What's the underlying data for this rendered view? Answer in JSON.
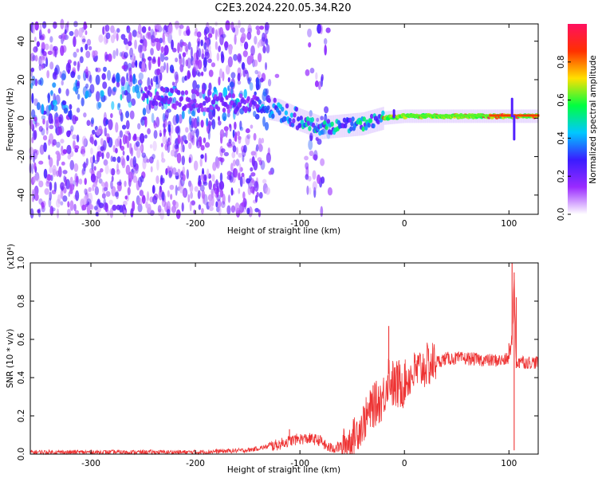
{
  "title": "C2E3.2024.220.05.34.R20",
  "chart_data": [
    {
      "type": "heatmap",
      "xlabel": "Height of straight line (km)",
      "ylabel": "Frequency (Hz)",
      "xlim": [
        -358,
        128
      ],
      "ylim": [
        -50,
        49
      ],
      "x_ticks": [
        -300,
        -200,
        -100,
        0,
        100
      ],
      "y_ticks": [
        -40,
        -20,
        0,
        20,
        40
      ],
      "colorbar": {
        "label": "Normalized spectral amplitude",
        "range": [
          0,
          1
        ],
        "ticks": [
          0.0,
          0.2,
          0.4,
          0.6,
          0.8
        ],
        "colors": [
          "#ffffff",
          "#9a2bff",
          "#3a1cff",
          "#00c8ff",
          "#00ff40",
          "#ffe000",
          "#ff3000",
          "#ff1060"
        ]
      },
      "ridge": [
        {
          "x": -240,
          "f": 11
        },
        {
          "x": -200,
          "f": 9
        },
        {
          "x": -160,
          "f": 8
        },
        {
          "x": -120,
          "f": 4
        },
        {
          "x": -100,
          "f": -1
        },
        {
          "x": -80,
          "f": -5
        },
        {
          "x": -60,
          "f": -4
        },
        {
          "x": -40,
          "f": -3
        },
        {
          "x": -20,
          "f": 0
        },
        {
          "x": 0,
          "f": 1
        },
        {
          "x": 50,
          "f": 1
        },
        {
          "x": 100,
          "f": 1
        },
        {
          "x": 128,
          "f": 1
        }
      ],
      "spikes": [
        {
          "x": -10,
          "f": 4
        },
        {
          "x": 103,
          "f": 10
        },
        {
          "x": 105,
          "f": -11
        }
      ]
    },
    {
      "type": "line",
      "xlabel": "Height of straight line (km)",
      "ylabel": "SNR (10 * v/v)",
      "y_multiplier": "(x10⁴)",
      "xlim": [
        -358,
        128
      ],
      "ylim": [
        0,
        1.0
      ],
      "x_ticks": [
        -300,
        -200,
        -100,
        0,
        100
      ],
      "y_ticks": [
        0.0,
        0.2,
        0.4,
        0.6,
        0.8,
        1.0
      ],
      "color": "#ee3333",
      "series": [
        {
          "x": [
            -358,
            -300,
            -250,
            -200,
            -150,
            -120,
            -110,
            -100,
            -90,
            -80,
            -75,
            -70,
            -60,
            -50,
            -40,
            -30,
            -20,
            -15,
            -10,
            0,
            10,
            20,
            30,
            40,
            60,
            80,
            95,
            100,
            103,
            105,
            107,
            110,
            115,
            128
          ],
          "y": [
            0.01,
            0.01,
            0.01,
            0.01,
            0.02,
            0.05,
            0.07,
            0.08,
            0.08,
            0.07,
            0.04,
            0.03,
            0.04,
            0.08,
            0.16,
            0.25,
            0.3,
            0.42,
            0.35,
            0.38,
            0.43,
            0.46,
            0.48,
            0.5,
            0.5,
            0.49,
            0.49,
            0.5,
            0.6,
            0.95,
            0.45,
            0.5,
            0.48,
            0.48
          ]
        }
      ],
      "spikes": [
        {
          "x": -15,
          "y": 0.67
        },
        {
          "x": -30,
          "y": 0.36
        },
        {
          "x": -110,
          "y": 0.13
        },
        {
          "x": 100,
          "y": 0.58
        },
        {
          "x": 103,
          "y": 1.0
        },
        {
          "x": 105,
          "y": 0.02
        },
        {
          "x": 107,
          "y": 0.82
        },
        {
          "x": 110,
          "y": 0.45
        }
      ]
    }
  ]
}
